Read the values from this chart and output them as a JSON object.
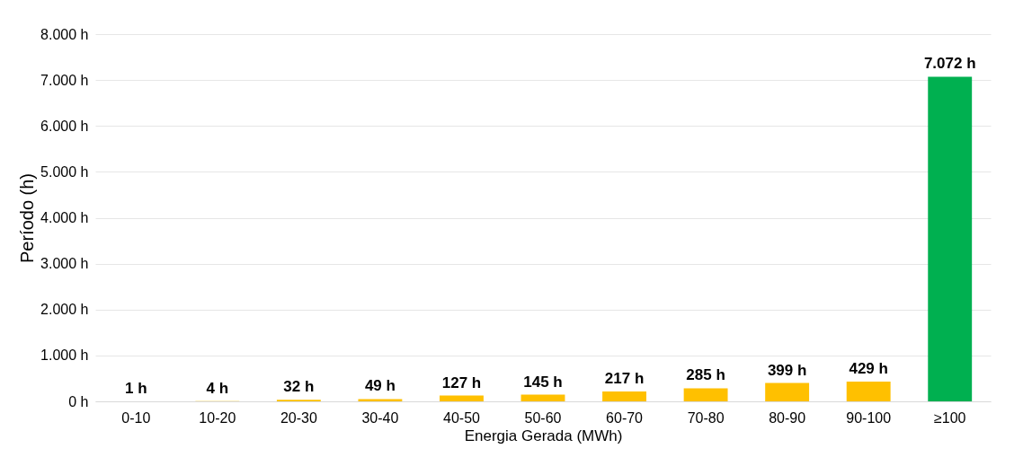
{
  "chart_data": {
    "type": "bar",
    "xlabel": "Energia Gerada (MWh)",
    "ylabel": "Período (h)",
    "categories": [
      "0-10",
      "10-20",
      "20-30",
      "30-40",
      "40-50",
      "50-60",
      "60-70",
      "70-80",
      "80-90",
      "90-100",
      "≥100"
    ],
    "values": [
      1,
      4,
      32,
      49,
      127,
      145,
      217,
      285,
      399,
      429,
      7072
    ],
    "colors": [
      "#ffc000",
      "#ffc000",
      "#ffc000",
      "#ffc000",
      "#ffc000",
      "#ffc000",
      "#ffc000",
      "#ffc000",
      "#ffc000",
      "#ffc000",
      "#00b050"
    ],
    "value_labels": [
      "1 h",
      "4 h",
      "32 h",
      "49 h",
      "127 h",
      "145 h",
      "217 h",
      "285 h",
      "399 h",
      "429 h",
      "7.072 h"
    ],
    "ylim": [
      0,
      8000
    ],
    "yticks": [
      {
        "value": 0,
        "label": "0 h"
      },
      {
        "value": 1000,
        "label": "1.000 h"
      },
      {
        "value": 2000,
        "label": "2.000 h"
      },
      {
        "value": 3000,
        "label": "3.000 h"
      },
      {
        "value": 4000,
        "label": "4.000 h"
      },
      {
        "value": 5000,
        "label": "5.000 h"
      },
      {
        "value": 6000,
        "label": "6.000 h"
      },
      {
        "value": 7000,
        "label": "7.000 h"
      },
      {
        "value": 8000,
        "label": "8.000 h"
      }
    ],
    "grid": "y"
  }
}
